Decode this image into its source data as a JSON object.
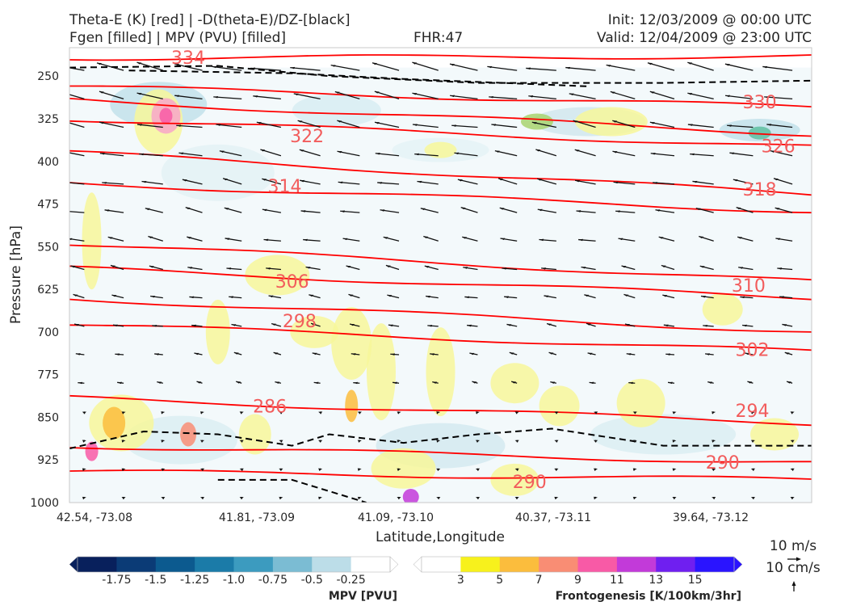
{
  "header": {
    "title_left_1": "Theta-E (K) [red] | -D(theta-E)/DZ-[black]",
    "title_left_2": "Fgen [filled] | MPV (PVU) [filled]",
    "fhr": "FHR:47",
    "init": "Init: 12/03/2009 @ 00:00 UTC",
    "valid": "Valid: 12/04/2009 @ 23:00 UTC"
  },
  "chart_data": {
    "type": "cross-section",
    "ylabel": "Pressure [hPa]",
    "xlabel": "Latitude,Longitude",
    "y_scale": "inverted (pressure decreases upward)",
    "ylim": [
      1000,
      200
    ],
    "y_ticks": [
      "250",
      "325",
      "400",
      "475",
      "550",
      "625",
      "700",
      "775",
      "850",
      "925",
      "1000"
    ],
    "x_ticks": [
      "42.54, -73.08",
      "41.81, -73.09",
      "41.09, -73.10",
      "40.37, -73.11",
      "39.64, -73.12"
    ],
    "grid": false,
    "theta_e_labels": [
      {
        "text": "334",
        "x": 0.16,
        "p": 217
      },
      {
        "text": "330",
        "x": 0.93,
        "p": 295
      },
      {
        "text": "326",
        "x": 0.955,
        "p": 373
      },
      {
        "text": "322",
        "x": 0.32,
        "p": 355
      },
      {
        "text": "318",
        "x": 0.93,
        "p": 449
      },
      {
        "text": "314",
        "x": 0.29,
        "p": 443
      },
      {
        "text": "310",
        "x": 0.915,
        "p": 618
      },
      {
        "text": "306",
        "x": 0.3,
        "p": 611
      },
      {
        "text": "302",
        "x": 0.92,
        "p": 731
      },
      {
        "text": "298",
        "x": 0.31,
        "p": 680
      },
      {
        "text": "294",
        "x": 0.92,
        "p": 838
      },
      {
        "text": "290",
        "x": 0.62,
        "p": 963
      },
      {
        "text": "290",
        "x": 0.88,
        "p": 929
      },
      {
        "text": "286",
        "x": 0.27,
        "p": 830
      }
    ],
    "theta_e_contours": [
      {
        "level": 334,
        "left_p": 218,
        "right_p": 215
      },
      {
        "level": 330,
        "left_p": 268,
        "right_p": 305
      },
      {
        "level": 326,
        "left_p": 292,
        "right_p": 352
      },
      {
        "level": 322,
        "left_p": 325,
        "right_p": 375
      },
      {
        "level": 318,
        "left_p": 384,
        "right_p": 458
      },
      {
        "level": 314,
        "left_p": 438,
        "right_p": 488
      },
      {
        "level": 310,
        "left_p": 544,
        "right_p": 612
      },
      {
        "level": 306,
        "left_p": 588,
        "right_p": 640
      },
      {
        "level": 302,
        "left_p": 641,
        "right_p": 700
      },
      {
        "level": 298,
        "left_p": 686,
        "right_p": 735
      },
      {
        "level": 294,
        "left_p": 816,
        "right_p": 860
      },
      {
        "level": 290,
        "left_p": 900,
        "right_p": 930
      },
      {
        "level": 286,
        "left_p": 945,
        "right_p": 960
      }
    ],
    "colorbars": [
      {
        "name": "MPV [PVU]",
        "ticks": [
          "-1.75",
          "-1.5",
          "-1.25",
          "-1.0",
          "-0.75",
          "-0.5",
          "-0.25"
        ],
        "colors": [
          "#08205c",
          "#0b3b76",
          "#0c5a8f",
          "#1b7ba8",
          "#3c9bbf",
          "#7bbcd3",
          "#bcdde8",
          "#ffffff"
        ]
      },
      {
        "name": "Frontogenesis [K/100km/3hr]",
        "ticks": [
          "3",
          "5",
          "7",
          "9",
          "11",
          "13",
          "15"
        ],
        "colors": [
          "#ffffff",
          "#f7f11c",
          "#fbbd3d",
          "#f98d74",
          "#f85aa6",
          "#c23ad9",
          "#6f1ff0",
          "#2a14ff"
        ]
      }
    ],
    "wind_legend": [
      "10 m/s",
      "10 cm/s"
    ]
  }
}
